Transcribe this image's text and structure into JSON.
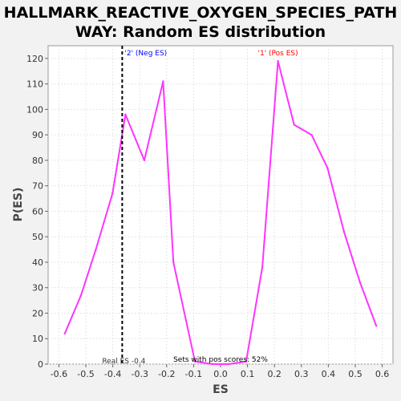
{
  "chart_data": {
    "type": "line",
    "title_lines": [
      "HALLMARK_REACTIVE_OXYGEN_SPECIES_PATH",
      "WAY: Random ES distribution"
    ],
    "xlabel": "ES",
    "ylabel": "P(ES)",
    "xlim": [
      -0.64,
      0.64
    ],
    "ylim": [
      0,
      125
    ],
    "xticks": [
      -0.6,
      -0.5,
      -0.4,
      -0.3,
      -0.2,
      -0.1,
      0.0,
      0.1,
      0.2,
      0.3,
      0.4,
      0.5,
      0.6
    ],
    "xtick_labels": [
      "-0.6",
      "-0.5",
      "-0.4",
      "-0.3",
      "-0.2",
      "-0.1",
      "0.0",
      "0.1",
      "0.2",
      "0.3",
      "0.4",
      "0.5",
      "0.6"
    ],
    "yticks": [
      0,
      10,
      20,
      30,
      40,
      50,
      60,
      70,
      80,
      90,
      100,
      110,
      120
    ],
    "ytick_labels": [
      "0",
      "10",
      "20",
      "30",
      "40",
      "50",
      "60",
      "70",
      "80",
      "90",
      "100",
      "110",
      "120"
    ],
    "grid": true,
    "series": [
      {
        "color": "#ff33ff",
        "x": [
          -0.578,
          -0.518,
          -0.463,
          -0.401,
          -0.353,
          -0.283,
          -0.213,
          -0.175,
          -0.095,
          -0.03,
          0.03,
          0.095,
          0.155,
          0.213,
          0.273,
          0.338,
          0.397,
          0.458,
          0.518,
          0.578
        ],
        "y": [
          12,
          27,
          45,
          67,
          98,
          80,
          111,
          40,
          1,
          0,
          0,
          1,
          38,
          119,
          94,
          90,
          77,
          52,
          32,
          15
        ]
      }
    ],
    "real_es_line": {
      "x": -0.365,
      "label": "Real ES -0.4"
    },
    "annotations": {
      "neg_label": "'2' (Neg ES)",
      "neg_color": "#0000ff",
      "pos_label": "'1' (Pos ES)",
      "pos_color": "#ff0000",
      "sets_text": "Sets with pos scores: 52%"
    },
    "colors": {
      "plot_bg": "#ffffff",
      "page_bg": "#f2f2f2",
      "grid": "#e6e6e6"
    }
  }
}
